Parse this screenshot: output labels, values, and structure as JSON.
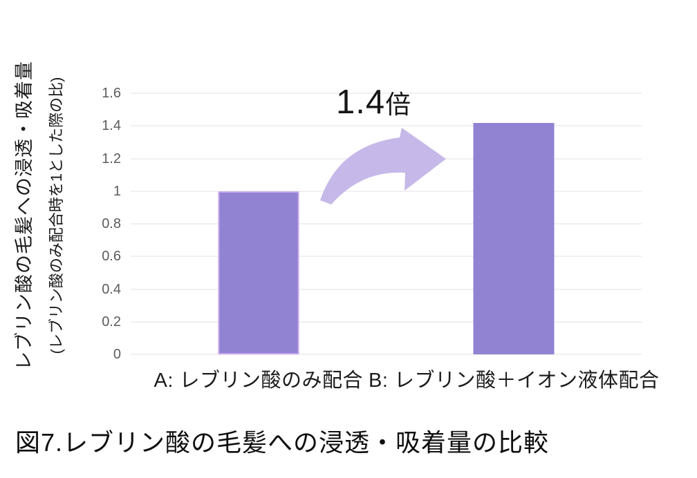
{
  "caption": "図7.レブリン酸の毛髪への浸透・吸着量の比較",
  "chart_data": {
    "type": "bar",
    "title": "",
    "ylabel": "レブリン酸の毛髪への浸透・吸着量",
    "ylabel_sub": "(レブリン酸のみ配合時を1とした際の比)",
    "categories": [
      "A: レブリン酸のみ配合",
      "B: レブリン酸＋イオン液体配合"
    ],
    "values": [
      1,
      1.42
    ],
    "ylim": [
      0,
      1.6
    ],
    "yticks": [
      "0",
      "0.2",
      "0.4",
      "0.6",
      "0.8",
      "1",
      "1.2",
      "1.4",
      "1.6"
    ],
    "grid": true,
    "legend": "none",
    "annotation": {
      "value": "1.4",
      "suffix": "倍"
    },
    "bar_border_flags": [
      true,
      false
    ],
    "colors": {
      "bar_fill": "#9182d2",
      "bar_highlight_border": "#c5a6ec",
      "arrow": "#c6b8e8",
      "gridline": "#e4e2e6",
      "tick_text": "#5b5b5b"
    }
  }
}
